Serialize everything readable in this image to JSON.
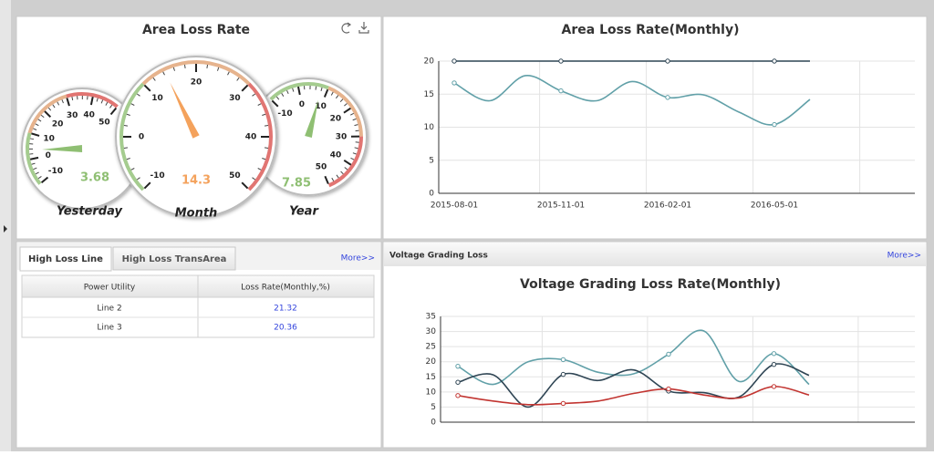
{
  "area_loss_rate": {
    "title": "Area Loss Rate",
    "gauges": [
      {
        "type": "gauge",
        "label": "Yesterday",
        "value": 3.68,
        "range": [
          -10,
          50
        ],
        "ticks": [
          -10,
          0,
          10,
          20,
          30,
          40,
          50
        ],
        "color": "#8fbf73"
      },
      {
        "type": "gauge",
        "label": "Month",
        "value": 14.3,
        "range": [
          -10,
          50
        ],
        "ticks": [
          -10,
          0,
          10,
          20,
          30,
          40,
          50
        ],
        "color": "#f4a25c"
      },
      {
        "type": "gauge",
        "label": "Year",
        "value": 7.85,
        "range": [
          -10,
          50
        ],
        "ticks": [
          -10,
          0,
          10,
          20,
          30,
          40,
          50
        ],
        "color": "#8fbf73"
      }
    ]
  },
  "area_chart": {
    "type": "line",
    "title": "Area Loss Rate(Monthly)",
    "categories": [
      "2015-08-01",
      null,
      null,
      "2015-11-01",
      null,
      null,
      "2016-02-01",
      null,
      null,
      "2016-05-01",
      null
    ],
    "series": [
      {
        "color": "#2f4554",
        "values": [
          20,
          20,
          20,
          20,
          20,
          20,
          20,
          20,
          20,
          20,
          20
        ]
      },
      {
        "color": "#61a0a8",
        "values": [
          16.7,
          14,
          17.8,
          15.5,
          14,
          16.9,
          14.5,
          14.9,
          12.3,
          10.4,
          14.2
        ]
      }
    ],
    "ylim": [
      0,
      20
    ],
    "yticks": [
      0,
      5,
      10,
      15,
      20
    ],
    "grid": true
  },
  "high_loss": {
    "tabs": [
      "High Loss Line",
      "High Loss TransArea"
    ],
    "more": "More>>",
    "table": {
      "header": [
        "Power Utility",
        "Loss Rate(Monthly,%)"
      ],
      "rows": [
        [
          "Line 2",
          21.32
        ],
        [
          "Line 3",
          20.36
        ]
      ]
    }
  },
  "voltage": {
    "header": "Voltage Grading Loss",
    "more": "More>>",
    "chart": {
      "type": "line",
      "title": "Voltage Grading Loss Rate(Monthly)",
      "categories": [
        null,
        null,
        null,
        null,
        null,
        null,
        null,
        null,
        null,
        null,
        null
      ],
      "series": [
        {
          "color": "#61a0a8",
          "values": [
            18.5,
            12.5,
            20,
            20.7,
            16.5,
            16,
            22.5,
            30.2,
            13.5,
            22.7,
            12.5
          ]
        },
        {
          "color": "#2f4554",
          "values": [
            13.2,
            15.7,
            5,
            15.8,
            13.8,
            17.3,
            10.3,
            9.8,
            8.3,
            19.1,
            15.5
          ]
        },
        {
          "color": "#c23531",
          "values": [
            8.8,
            7,
            5.8,
            6.2,
            7,
            9.5,
            11,
            9,
            8,
            11.8,
            9
          ]
        }
      ],
      "ylim": [
        0,
        35
      ],
      "yticks": [
        0,
        5,
        10,
        15,
        20,
        25,
        30,
        35
      ],
      "grid": true
    }
  }
}
